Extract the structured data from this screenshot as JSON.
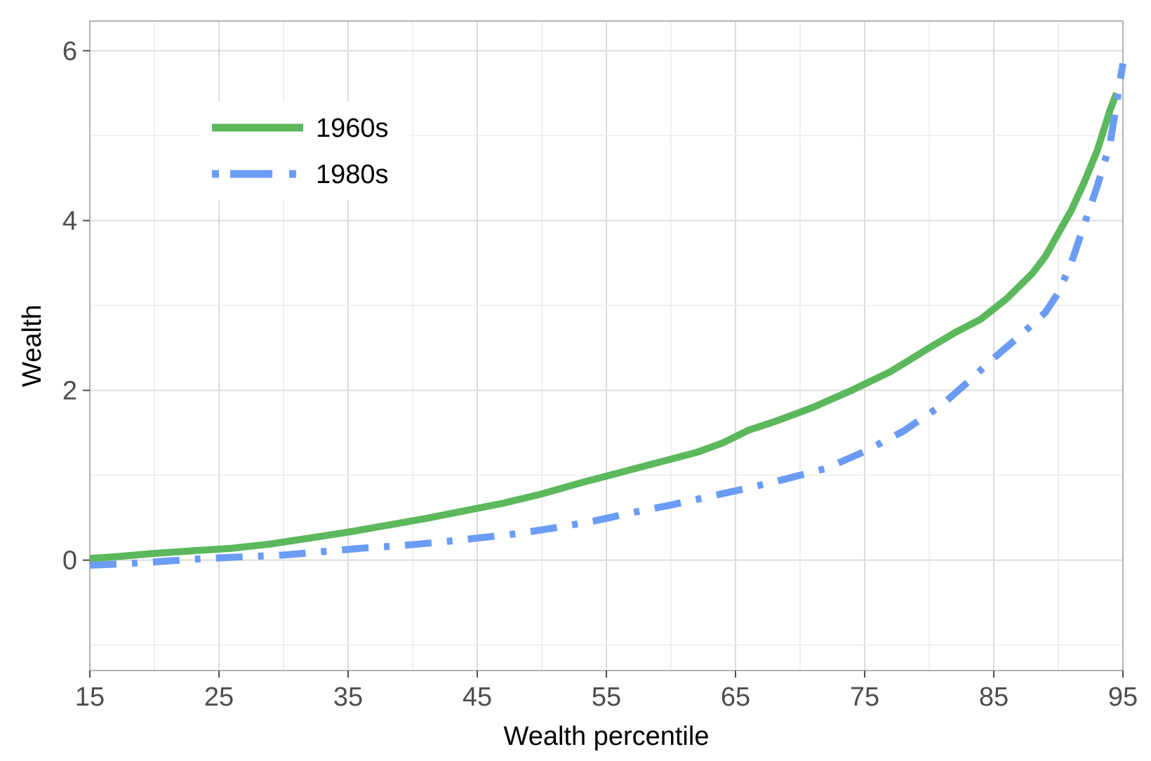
{
  "chart_data": {
    "type": "line",
    "title": "",
    "xlabel": "Wealth percentile",
    "ylabel": "Wealth",
    "xlim": [
      15,
      95
    ],
    "ylim": [
      -1.3,
      6.35
    ],
    "xticks": [
      15,
      25,
      35,
      45,
      55,
      65,
      75,
      85,
      95
    ],
    "yticks": [
      0,
      2,
      4,
      6
    ],
    "grid": true,
    "legend_position": "top-left",
    "series": [
      {
        "name": "1960s",
        "color": "#5cb85c",
        "style": "solid",
        "x": [
          15,
          17,
          20,
          23,
          26,
          29,
          32,
          35,
          38,
          41,
          44,
          47,
          50,
          53,
          56,
          59,
          62,
          64,
          66,
          68,
          71,
          74,
          77,
          80,
          82,
          84,
          86,
          88,
          89,
          90,
          91,
          92,
          93,
          94,
          94.5
        ],
        "y": [
          0.02,
          0.04,
          0.08,
          0.11,
          0.14,
          0.19,
          0.26,
          0.33,
          0.41,
          0.49,
          0.58,
          0.67,
          0.78,
          0.91,
          1.03,
          1.15,
          1.27,
          1.38,
          1.53,
          1.63,
          1.8,
          2.0,
          2.22,
          2.5,
          2.68,
          2.84,
          3.08,
          3.38,
          3.58,
          3.85,
          4.12,
          4.45,
          4.82,
          5.3,
          5.5
        ]
      },
      {
        "name": "1980s",
        "color": "#6b9cf5",
        "style": "dashdot",
        "x": [
          15,
          18,
          21,
          24,
          27,
          30,
          33,
          36,
          39,
          42,
          45,
          48,
          51,
          54,
          57,
          60,
          63,
          66,
          69,
          72,
          75,
          78,
          81,
          83,
          85,
          87,
          89,
          90,
          91,
          92,
          93,
          94,
          95
        ],
        "y": [
          -0.06,
          -0.04,
          -0.01,
          0.02,
          0.04,
          0.06,
          0.1,
          0.14,
          0.17,
          0.21,
          0.26,
          0.31,
          0.38,
          0.46,
          0.56,
          0.65,
          0.75,
          0.85,
          0.96,
          1.08,
          1.28,
          1.52,
          1.83,
          2.1,
          2.38,
          2.64,
          2.92,
          3.15,
          3.5,
          3.95,
          4.4,
          4.9,
          5.85
        ]
      }
    ]
  }
}
